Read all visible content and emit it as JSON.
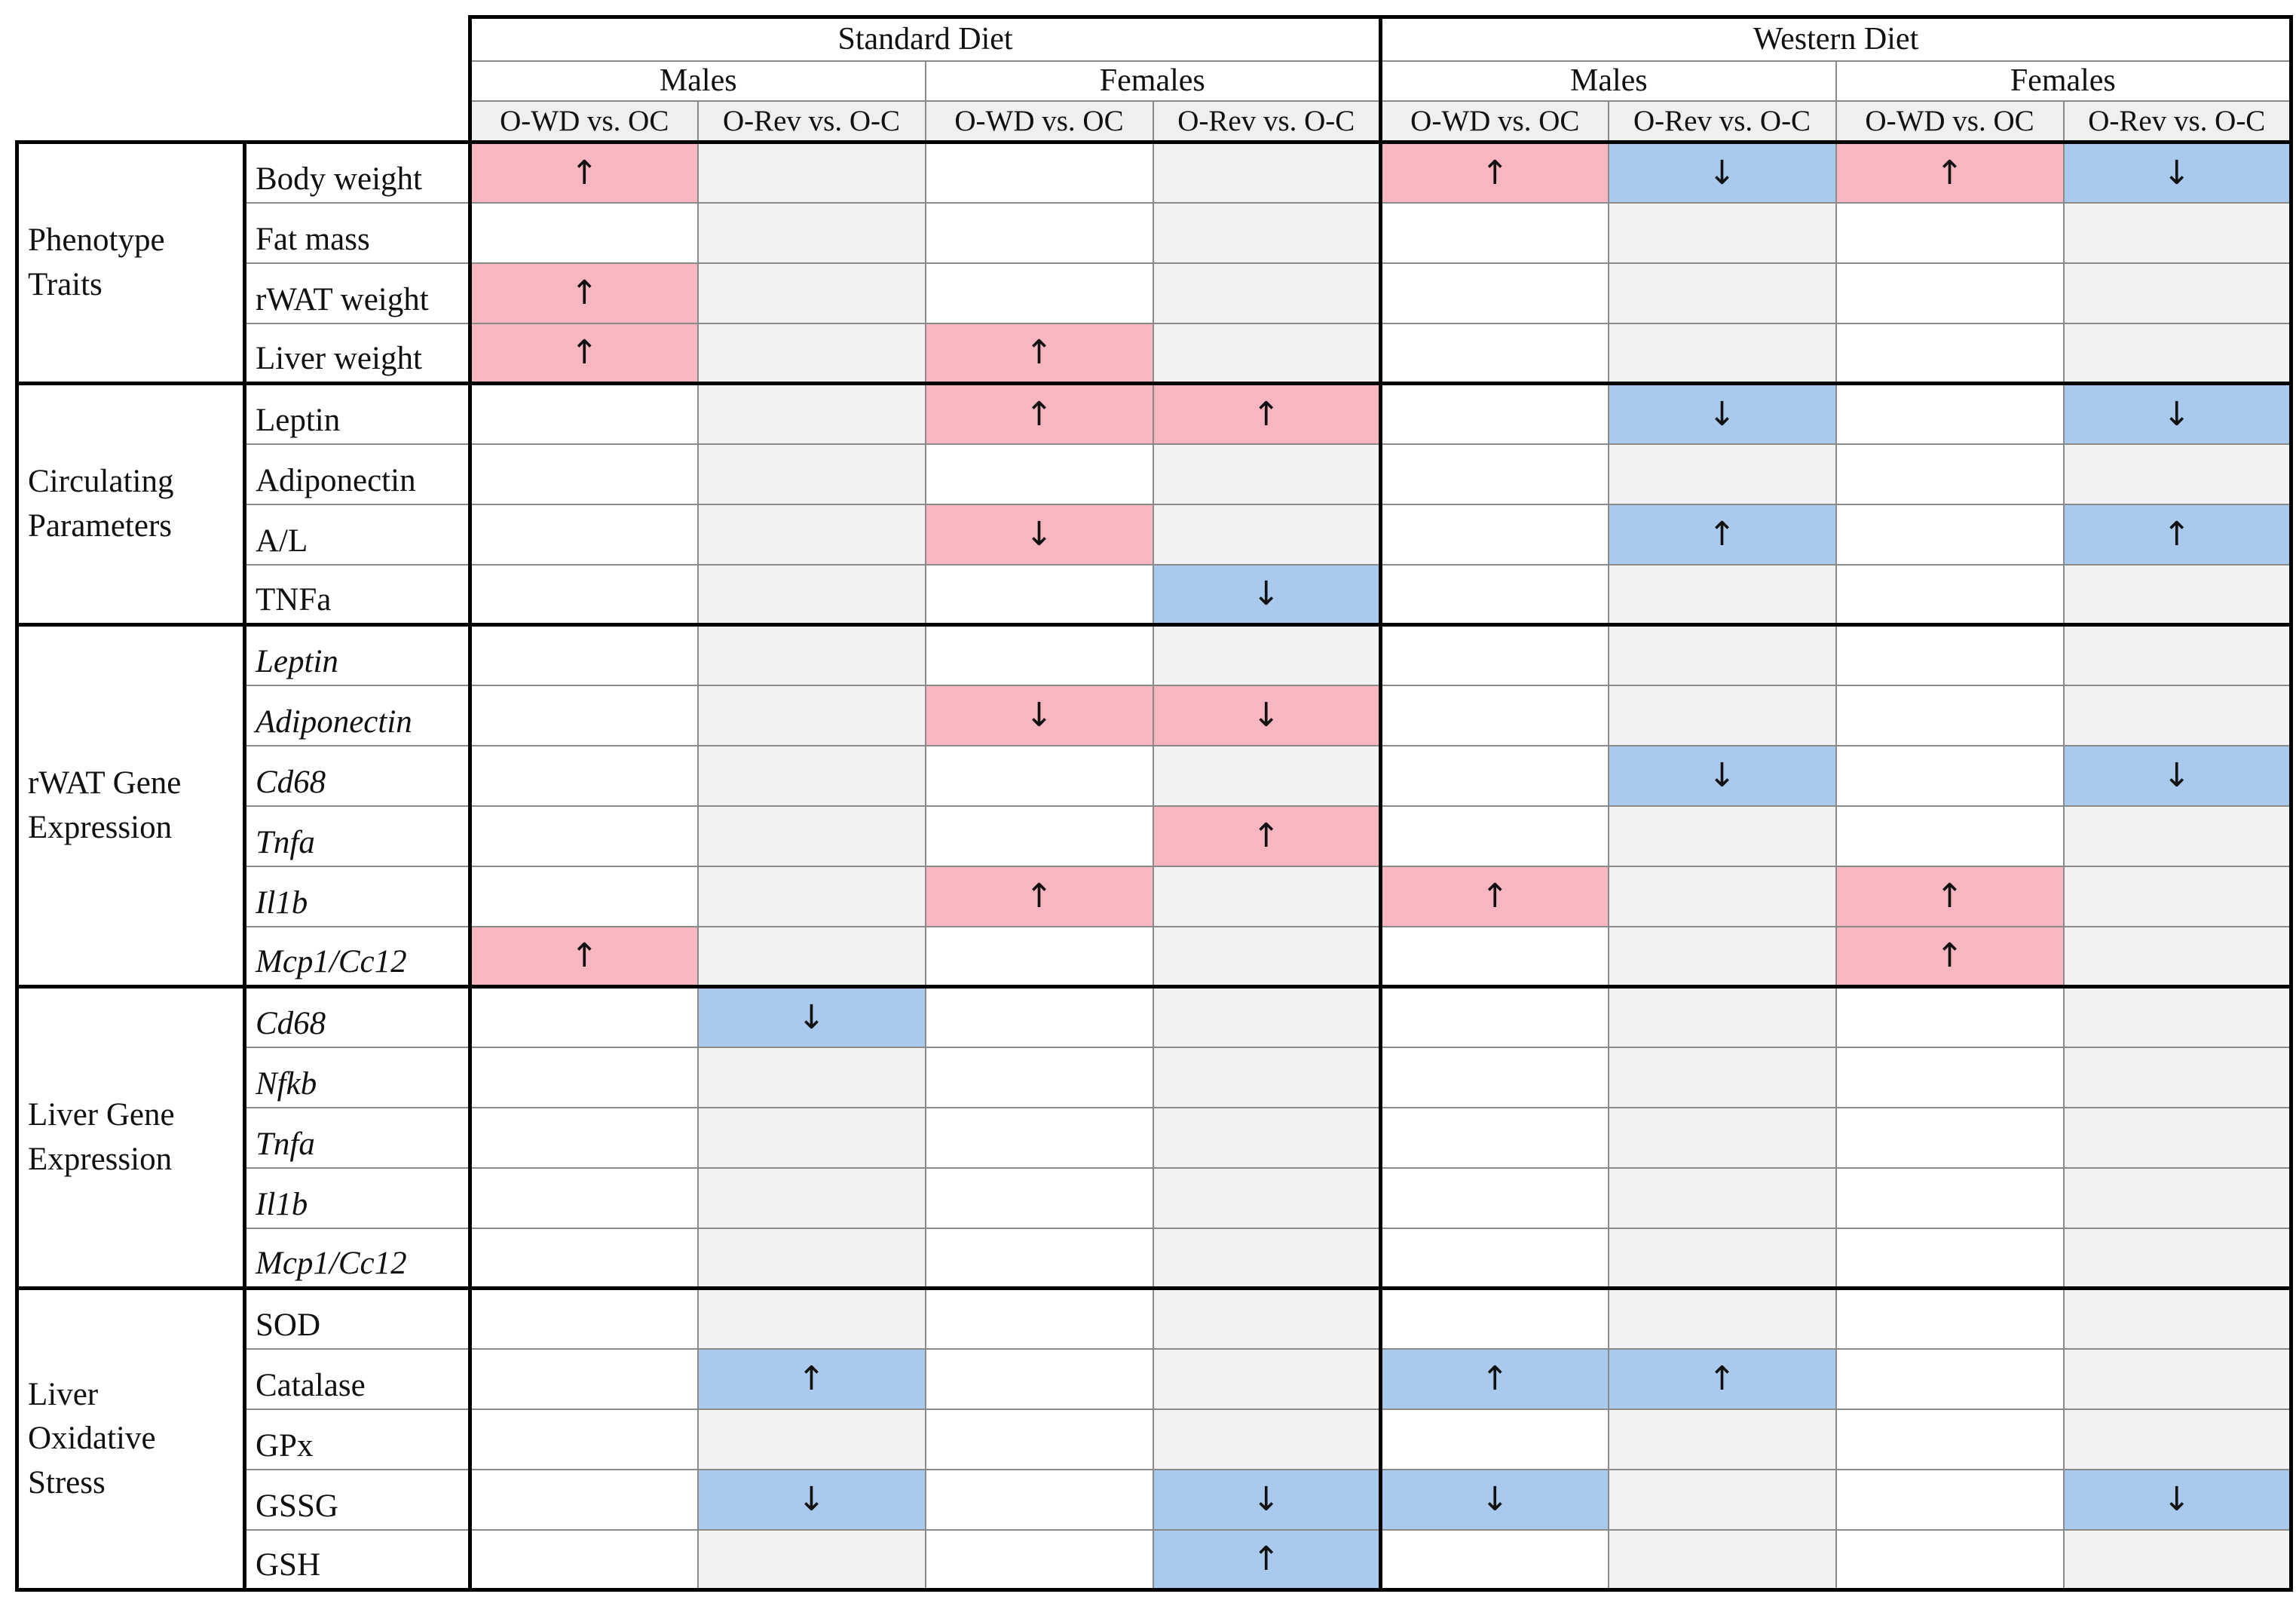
{
  "header": {
    "diets": [
      {
        "name": "Standard Diet",
        "sexes": [
          {
            "name": "Males",
            "comparisons": [
              "O-WD vs. OC",
              "O-Rev vs. O-C"
            ]
          },
          {
            "name": "Females",
            "comparisons": [
              "O-WD vs. OC",
              "O-Rev vs. O-C"
            ]
          }
        ]
      },
      {
        "name": "Western Diet",
        "sexes": [
          {
            "name": "Males",
            "comparisons": [
              "O-WD vs. OC",
              "O-Rev vs. O-C"
            ]
          },
          {
            "name": "Females",
            "comparisons": [
              "O-WD vs. OC",
              "O-Rev vs. O-C"
            ]
          }
        ]
      }
    ]
  },
  "groups": [
    {
      "name": "Phenotype\nTraits",
      "italic": false,
      "rows": [
        {
          "label": "Body weight",
          "cells": [
            {
              "arrow": "↑",
              "color": "#f8b6c0"
            },
            null,
            null,
            null,
            {
              "arrow": "↑",
              "color": "#f8b6c0"
            },
            {
              "arrow": "↓",
              "color": "#a9caec"
            },
            {
              "arrow": "↑",
              "color": "#f8b6c0"
            },
            {
              "arrow": "↓",
              "color": "#a9caec"
            }
          ]
        },
        {
          "label": "Fat mass",
          "cells": [
            null,
            null,
            null,
            null,
            null,
            null,
            null,
            null
          ]
        },
        {
          "label": "rWAT weight",
          "cells": [
            {
              "arrow": "↑",
              "color": "#f8b6c0"
            },
            null,
            null,
            null,
            null,
            null,
            null,
            null
          ]
        },
        {
          "label": "Liver weight",
          "cells": [
            {
              "arrow": "↑",
              "color": "#f8b6c0"
            },
            null,
            {
              "arrow": "↑",
              "color": "#f8b6c0"
            },
            null,
            null,
            null,
            null,
            null
          ]
        }
      ]
    },
    {
      "name": "Circulating\nParameters",
      "italic": false,
      "rows": [
        {
          "label": "Leptin",
          "cells": [
            null,
            null,
            {
              "arrow": "↑",
              "color": "#f8b6c0"
            },
            {
              "arrow": "↑",
              "color": "#f8b6c0"
            },
            null,
            {
              "arrow": "↓",
              "color": "#a9caec"
            },
            null,
            {
              "arrow": "↓",
              "color": "#a9caec"
            }
          ]
        },
        {
          "label": "Adiponectin",
          "cells": [
            null,
            null,
            null,
            null,
            null,
            null,
            null,
            null
          ]
        },
        {
          "label": "A/L",
          "cells": [
            null,
            null,
            {
              "arrow": "↓",
              "color": "#f8b6c0"
            },
            null,
            null,
            {
              "arrow": "↑",
              "color": "#a9caec"
            },
            null,
            {
              "arrow": "↑",
              "color": "#a9caec"
            }
          ]
        },
        {
          "label": "TNFa",
          "cells": [
            null,
            null,
            null,
            {
              "arrow": "↓",
              "color": "#a9caec"
            },
            null,
            null,
            null,
            null
          ]
        }
      ]
    },
    {
      "name": "rWAT Gene\nExpression",
      "italic": true,
      "rows": [
        {
          "label": "Leptin",
          "cells": [
            null,
            null,
            null,
            null,
            null,
            null,
            null,
            null
          ]
        },
        {
          "label": "Adiponectin",
          "cells": [
            null,
            null,
            {
              "arrow": "↓",
              "color": "#f8b6c0"
            },
            {
              "arrow": "↓",
              "color": "#f8b6c0"
            },
            null,
            null,
            null,
            null
          ]
        },
        {
          "label": "Cd68",
          "cells": [
            null,
            null,
            null,
            null,
            null,
            {
              "arrow": "↓",
              "color": "#a9caec"
            },
            null,
            {
              "arrow": "↓",
              "color": "#a9caec"
            }
          ]
        },
        {
          "label": "Tnfa",
          "cells": [
            null,
            null,
            null,
            {
              "arrow": "↑",
              "color": "#f8b6c0"
            },
            null,
            null,
            null,
            null
          ]
        },
        {
          "label": "Il1b",
          "cells": [
            null,
            null,
            {
              "arrow": "↑",
              "color": "#f8b6c0"
            },
            null,
            {
              "arrow": "↑",
              "color": "#f8b6c0"
            },
            null,
            {
              "arrow": "↑",
              "color": "#f8b6c0"
            },
            null
          ]
        },
        {
          "label": "Mcp1/Cc12",
          "cells": [
            {
              "arrow": "↑",
              "color": "#f8b6c0"
            },
            null,
            null,
            null,
            null,
            null,
            {
              "arrow": "↑",
              "color": "#f8b6c0"
            },
            null
          ]
        }
      ]
    },
    {
      "name": "Liver Gene\nExpression",
      "italic": true,
      "rows": [
        {
          "label": "Cd68",
          "cells": [
            null,
            {
              "arrow": "↓",
              "color": "#a9caec"
            },
            null,
            null,
            null,
            null,
            null,
            null
          ]
        },
        {
          "label": "Nfkb",
          "cells": [
            null,
            null,
            null,
            null,
            null,
            null,
            null,
            null
          ]
        },
        {
          "label": "Tnfa",
          "cells": [
            null,
            null,
            null,
            null,
            null,
            null,
            null,
            null
          ]
        },
        {
          "label": "Il1b",
          "cells": [
            null,
            null,
            null,
            null,
            null,
            null,
            null,
            null
          ]
        },
        {
          "label": "Mcp1/Cc12",
          "cells": [
            null,
            null,
            null,
            null,
            null,
            null,
            null,
            null
          ]
        }
      ]
    },
    {
      "name": "Liver\nOxidative\nStress",
      "italic": false,
      "rows": [
        {
          "label": "SOD",
          "cells": [
            null,
            null,
            null,
            null,
            null,
            null,
            null,
            null
          ]
        },
        {
          "label": "Catalase",
          "cells": [
            null,
            {
              "arrow": "↑",
              "color": "#a9caec"
            },
            null,
            null,
            {
              "arrow": "↑",
              "color": "#a9caec"
            },
            {
              "arrow": "↑",
              "color": "#a9caec"
            },
            null,
            null
          ]
        },
        {
          "label": "GPx",
          "cells": [
            null,
            null,
            null,
            null,
            null,
            null,
            null,
            null
          ]
        },
        {
          "label": "GSSG",
          "cells": [
            null,
            {
              "arrow": "↓",
              "color": "#a9caec"
            },
            null,
            {
              "arrow": "↓",
              "color": "#a9caec"
            },
            {
              "arrow": "↓",
              "color": "#a9caec"
            },
            null,
            null,
            {
              "arrow": "↓",
              "color": "#a9caec"
            }
          ]
        },
        {
          "label": "GSH",
          "cells": [
            null,
            null,
            null,
            {
              "arrow": "↑",
              "color": "#a9caec"
            },
            null,
            null,
            null,
            null
          ]
        }
      ]
    }
  ]
}
